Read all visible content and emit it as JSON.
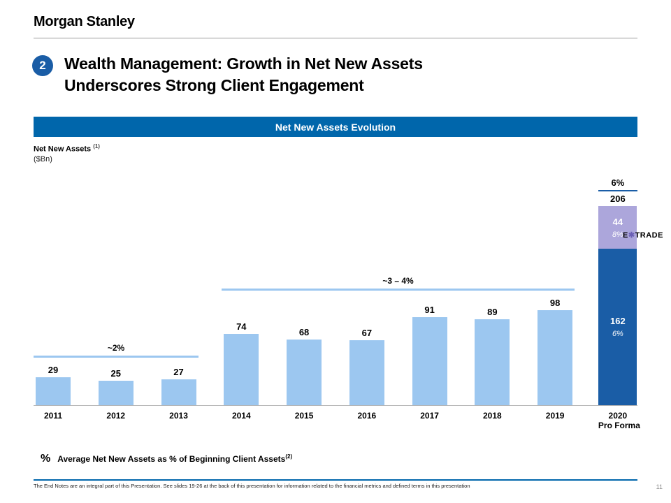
{
  "logo": "Morgan Stanley",
  "badge": "2",
  "title_line1": "Wealth Management: Growth in Net New Assets",
  "title_line2": "Underscores Strong Client Engagement",
  "banner": "Net New Assets Evolution",
  "axis": {
    "label": "Net New Assets",
    "sup": "(1)",
    "unit": "($Bn)"
  },
  "brand": {
    "banner_blue": "#0066AB",
    "badge_blue": "#1A5DA6",
    "etrade_star": "#6B5FB5"
  },
  "chart_data": {
    "type": "bar",
    "title": "Net New Assets Evolution",
    "xlabel": "",
    "ylabel": "Net New Assets ($Bn)",
    "ylim": [
      0,
      240
    ],
    "grid": false,
    "categories": [
      "2011",
      "2012",
      "2013",
      "2014",
      "2015",
      "2016",
      "2017",
      "2018",
      "2019",
      "2020"
    ],
    "final_category_sublabel": "Pro Forma",
    "series": [
      {
        "name": "Net New Assets",
        "values": [
          29,
          25,
          27,
          74,
          68,
          67,
          91,
          89,
          98,
          206
        ]
      }
    ],
    "final_bar_stack": {
      "base_value": 162,
      "base_pct": "6%",
      "top_value": 44,
      "top_pct": "8%",
      "total": 206,
      "total_pct": "6%"
    },
    "brackets": [
      {
        "label": "~2%",
        "from": 0,
        "to": 2
      },
      {
        "label": "~3 – 4%",
        "from": 3,
        "to": 8
      }
    ],
    "colors": {
      "bar_light_blue": "#9CC7F0",
      "bar_dark_blue": "#1A5DA6",
      "bar_purple": "#ACA6DB",
      "bracket_line": "#9CC7F0"
    }
  },
  "etrade": {
    "pre": "E",
    "star": "✱",
    "post": "TRADE"
  },
  "footnote": {
    "symbol": "%",
    "text": "Average Net New Assets as % of Beginning Client Assets",
    "sup": "(2)"
  },
  "footer": "The End Notes are an integral part of this Presentation.  See slides 19-26 at the back of this presentation  for information related  to the financial  metrics and  defined  terms in this presentation",
  "page_number": "11"
}
